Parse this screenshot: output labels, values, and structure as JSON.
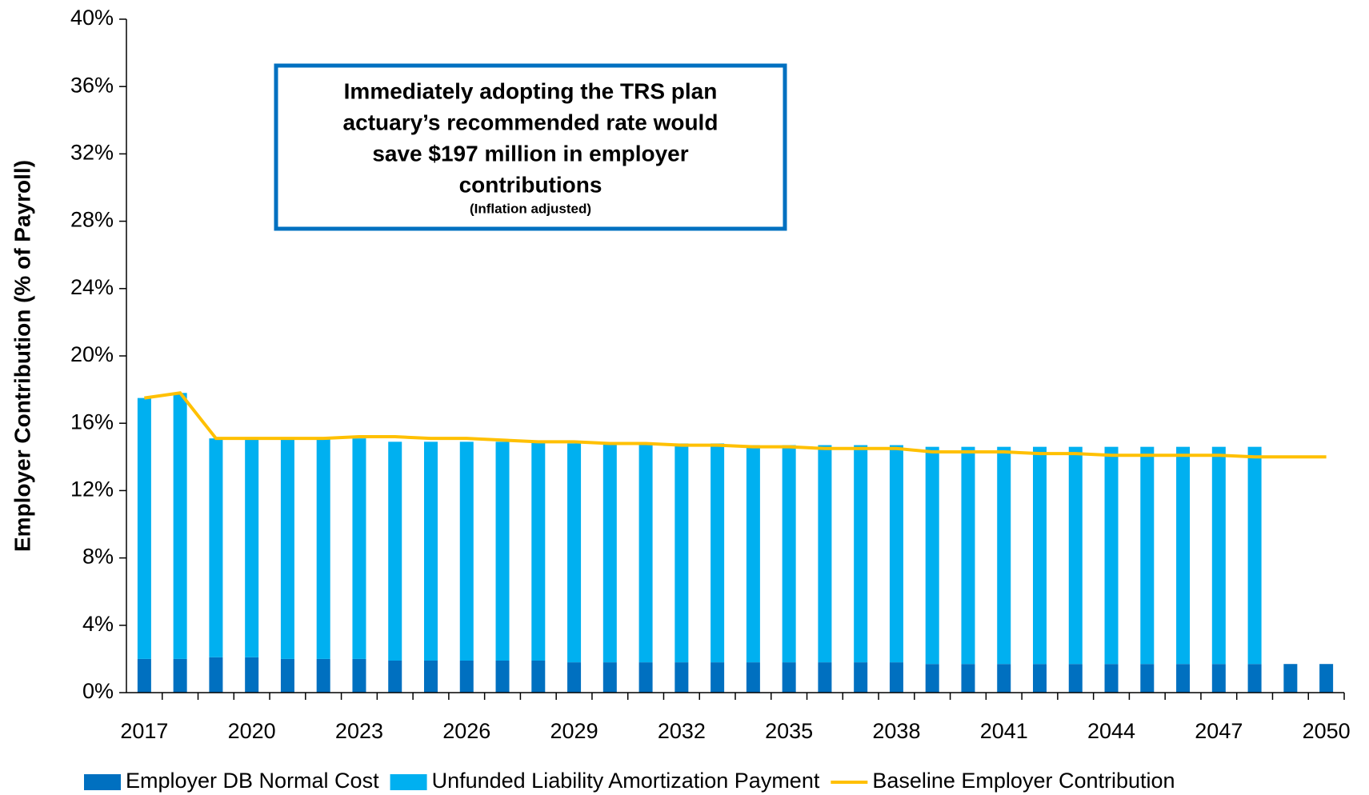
{
  "chart_data": {
    "type": "stacked_bar_line",
    "y_label": "Employer Contribution (% of Payroll)",
    "annotation": {
      "lines": [
        "Immediately adopting the TRS plan",
        "actuary’s recommended rate would",
        "save $197 million in employer",
        "contributions"
      ],
      "note": "(Inflation adjusted)"
    },
    "categories": [
      "2017",
      null,
      null,
      "2020",
      null,
      null,
      "2023",
      null,
      null,
      "2026",
      null,
      null,
      "2029",
      null,
      null,
      "2032",
      null,
      null,
      "2035",
      null,
      null,
      "2038",
      null,
      null,
      "2041",
      null,
      null,
      "2044",
      null,
      null,
      "2047",
      null,
      null,
      "2050"
    ],
    "series": [
      {
        "name": "Employer DB Normal Cost",
        "color": "#0070c0",
        "kind": "bar",
        "values": [
          2.0,
          2.0,
          2.1,
          2.1,
          2.0,
          2.0,
          2.0,
          1.9,
          1.9,
          1.9,
          1.9,
          1.9,
          1.8,
          1.8,
          1.8,
          1.8,
          1.8,
          1.8,
          1.8,
          1.8,
          1.8,
          1.8,
          1.7,
          1.7,
          1.7,
          1.7,
          1.7,
          1.7,
          1.7,
          1.7,
          1.7,
          1.7,
          1.7,
          1.7
        ]
      },
      {
        "name": "Unfunded Liability Amortization Payment",
        "color": "#00b0f0",
        "kind": "bar",
        "values": [
          15.5,
          15.8,
          13.0,
          13.0,
          13.1,
          13.1,
          13.1,
          13.0,
          13.0,
          13.0,
          13.0,
          13.0,
          13.0,
          13.0,
          13.0,
          13.0,
          13.0,
          12.9,
          12.9,
          12.9,
          12.9,
          12.9,
          12.9,
          12.9,
          12.9,
          12.9,
          12.9,
          12.9,
          12.9,
          12.9,
          12.9,
          12.9,
          null,
          null
        ]
      },
      {
        "name": "Baseline Employer Contribution",
        "color": "#ffc000",
        "kind": "line",
        "values": [
          17.5,
          17.8,
          15.1,
          15.1,
          15.1,
          15.1,
          15.2,
          15.2,
          15.1,
          15.1,
          15.0,
          14.9,
          14.9,
          14.8,
          14.8,
          14.7,
          14.7,
          14.6,
          14.6,
          14.5,
          14.5,
          14.5,
          14.3,
          14.3,
          14.3,
          14.2,
          14.2,
          14.1,
          14.1,
          14.1,
          14.1,
          14.0,
          14.0,
          14.0
        ]
      }
    ],
    "ylim": [
      0,
      40
    ],
    "yticks": [
      {
        "value": 0,
        "label": "0%"
      },
      {
        "value": 4,
        "label": "4%"
      },
      {
        "value": 8,
        "label": "8%"
      },
      {
        "value": 12,
        "label": "12%"
      },
      {
        "value": 16,
        "label": "16%"
      },
      {
        "value": 20,
        "label": "20%"
      },
      {
        "value": 24,
        "label": "24%"
      },
      {
        "value": 28,
        "label": "28%"
      },
      {
        "value": 32,
        "label": "32%"
      },
      {
        "value": 36,
        "label": "36%"
      },
      {
        "value": 40,
        "label": "40%"
      }
    ]
  }
}
